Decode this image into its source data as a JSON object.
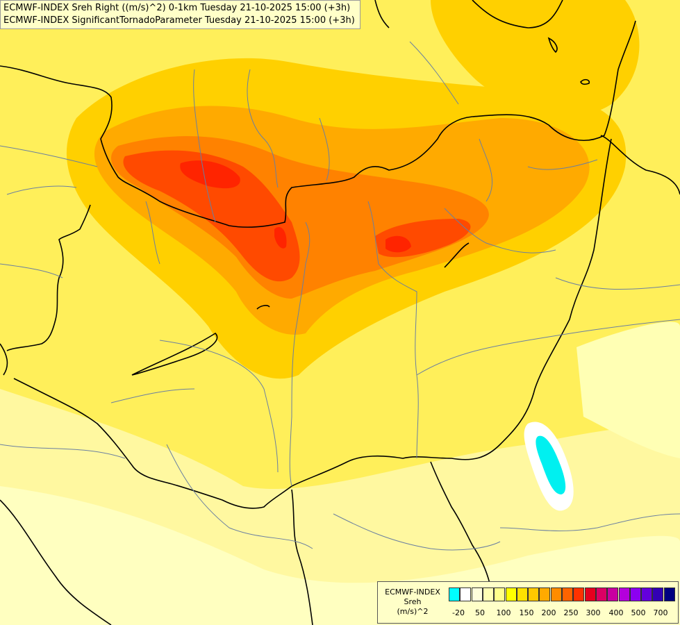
{
  "title_lines": [
    "ECMWF-INDEX Sreh Right ((m/s)^2) 0-1km Tuesday 21-10-2025 15:00 (+3h)",
    "ECMWF-INDEX SignificantTornadoParameter Tuesday 21-10-2025 15:00 (+3h)"
  ],
  "legend": {
    "title_lines": [
      "ECMWF-INDEX",
      "Sreh",
      "(m/s)^2"
    ],
    "colors": [
      "#00ffff",
      "#ffffff",
      "#ffffdc",
      "#ffffb4",
      "#ffff8c",
      "#ffff00",
      "#ffe100",
      "#ffc800",
      "#ffaa00",
      "#ff8c00",
      "#ff6400",
      "#ff3200",
      "#e6001e",
      "#dc0064",
      "#c800a0",
      "#b400dc",
      "#8c00f0",
      "#6400dc",
      "#3200b4",
      "#000080"
    ],
    "ticks": [
      "-20",
      "50",
      "100",
      "150",
      "200",
      "250",
      "300",
      "400",
      "500",
      "700"
    ]
  }
}
